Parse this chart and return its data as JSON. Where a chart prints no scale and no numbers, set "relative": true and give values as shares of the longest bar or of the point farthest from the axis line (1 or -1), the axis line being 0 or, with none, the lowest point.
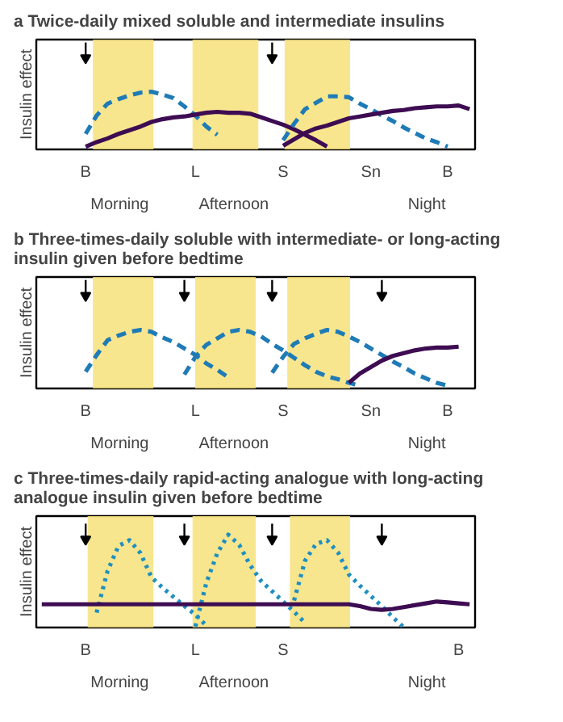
{
  "chart_data": [
    {
      "type": "line",
      "relative": true,
      "title": "a   Twice-daily mixed soluble and intermediate insulins",
      "ylabel": "Insulin effect",
      "grid": false,
      "categories": [
        null,
        null,
        null,
        null,
        "B",
        null,
        null,
        null,
        null,
        null,
        null,
        null,
        null,
        null,
        "L",
        null,
        null,
        null,
        null,
        null,
        null,
        null,
        "S",
        null,
        null,
        null,
        null,
        null,
        null,
        null,
        "Sn",
        null,
        null,
        null,
        null,
        null,
        null,
        "B",
        null,
        null
      ],
      "annotations": [
        "Morning",
        "Afternoon",
        "Night"
      ],
      "series": [
        {
          "type": "scatter",
          "marker": "triangle",
          "color": "#000000",
          "values": [
            null,
            null,
            null,
            null,
            1,
            null,
            null,
            null,
            null,
            null,
            null,
            null,
            null,
            null,
            null,
            null,
            null,
            null,
            null,
            null,
            null,
            1,
            null,
            null,
            null,
            null,
            null,
            null,
            null,
            null,
            null,
            null,
            null,
            null,
            null,
            null,
            null,
            null,
            null,
            null
          ]
        },
        {
          "color": "#1f7bb6",
          "line_style": "dashed",
          "values": [
            null,
            null,
            null,
            null,
            0.17,
            0.37,
            0.5,
            0.55,
            0.59,
            0.62,
            0.63,
            0.6,
            0.56,
            0.47,
            0.37,
            0.25,
            0.16,
            null,
            null,
            null,
            null,
            null,
            null,
            null,
            null,
            null,
            null,
            null,
            null,
            null,
            null,
            null,
            null,
            null,
            null,
            null,
            null,
            null,
            null,
            null
          ]
        },
        {
          "color": "#3d0c52",
          "line_style": "solid",
          "values": [
            null,
            null,
            null,
            null,
            0.03,
            0.08,
            0.12,
            0.17,
            0.21,
            0.25,
            0.3,
            0.33,
            0.35,
            0.36,
            0.38,
            0.4,
            0.41,
            0.4,
            0.4,
            0.39,
            0.35,
            0.31,
            0.27,
            0.22,
            0.16,
            0.1,
            0.03,
            null,
            null,
            null,
            null,
            null,
            null,
            null,
            null,
            null,
            null,
            null,
            null,
            null
          ]
        },
        {
          "color": "#1f7bb6",
          "line_style": "dashed",
          "values": [
            null,
            null,
            null,
            null,
            null,
            null,
            null,
            null,
            null,
            null,
            null,
            null,
            null,
            null,
            null,
            null,
            null,
            null,
            null,
            null,
            null,
            null,
            0.1,
            0.28,
            0.44,
            0.51,
            0.58,
            0.58,
            0.57,
            0.5,
            0.44,
            0.37,
            0.31,
            0.24,
            0.18,
            0.12,
            0.08,
            0.03,
            null,
            null
          ]
        },
        {
          "color": "#3d0c52",
          "line_style": "solid",
          "values": [
            null,
            null,
            null,
            null,
            null,
            null,
            null,
            null,
            null,
            null,
            null,
            null,
            null,
            null,
            null,
            null,
            null,
            null,
            null,
            null,
            null,
            null,
            0.04,
            0.11,
            0.18,
            0.23,
            0.26,
            0.3,
            0.34,
            0.36,
            0.38,
            0.4,
            0.42,
            0.43,
            0.45,
            0.46,
            0.47,
            0.47,
            0.48,
            0.44
          ]
        }
      ]
    },
    {
      "type": "line",
      "relative": true,
      "title": "b   Three-times-daily soluble with intermediate- or long-acting\n     insulin given before bedtime",
      "ylabel": "Insulin effect",
      "grid": false,
      "categories": [
        null,
        null,
        null,
        null,
        "B",
        null,
        null,
        null,
        null,
        null,
        null,
        null,
        null,
        null,
        "L",
        null,
        null,
        null,
        null,
        null,
        null,
        null,
        "S",
        null,
        null,
        null,
        null,
        null,
        null,
        null,
        "Sn",
        null,
        null,
        null,
        null,
        null,
        null,
        "B",
        null,
        null
      ],
      "annotations": [
        "Morning",
        "Afternoon",
        "Night"
      ],
      "series": [
        {
          "type": "scatter",
          "marker": "triangle",
          "color": "#000000",
          "values": [
            null,
            null,
            null,
            null,
            1,
            null,
            null,
            null,
            null,
            null,
            null,
            null,
            null,
            1,
            null,
            null,
            null,
            null,
            null,
            null,
            null,
            1,
            null,
            null,
            null,
            null,
            null,
            null,
            null,
            null,
            null,
            1,
            null,
            null,
            null,
            null,
            null,
            null,
            null,
            null
          ]
        },
        {
          "color": "#1f7bb6",
          "line_style": "dashed",
          "values": [
            null,
            null,
            null,
            null,
            0.18,
            0.36,
            0.52,
            0.57,
            0.61,
            0.63,
            0.61,
            0.55,
            0.5,
            0.43,
            0.36,
            0.27,
            0.2,
            0.12,
            null,
            null,
            null,
            null,
            null,
            null,
            null,
            null,
            null,
            null,
            null,
            null,
            null,
            null,
            null,
            null,
            null,
            null,
            null,
            null,
            null,
            null
          ]
        },
        {
          "color": "#1f7bb6",
          "line_style": "dashed",
          "values": [
            null,
            null,
            null,
            null,
            null,
            null,
            null,
            null,
            null,
            null,
            null,
            null,
            null,
            0.15,
            0.34,
            0.47,
            0.54,
            0.61,
            0.63,
            0.61,
            0.56,
            0.48,
            0.41,
            0.33,
            0.25,
            0.18,
            0.13,
            0.1,
            0.06,
            0.03,
            null,
            null,
            null,
            null,
            null,
            null,
            null,
            null,
            null,
            null
          ]
        },
        {
          "color": "#1f7bb6",
          "line_style": "dashed",
          "values": [
            null,
            null,
            null,
            null,
            null,
            null,
            null,
            null,
            null,
            null,
            null,
            null,
            null,
            null,
            null,
            null,
            null,
            null,
            null,
            null,
            null,
            0.17,
            0.34,
            0.48,
            0.54,
            0.59,
            0.63,
            0.61,
            0.56,
            0.5,
            0.43,
            0.36,
            0.29,
            0.23,
            0.16,
            0.11,
            0.06,
            0.03,
            null,
            null
          ]
        },
        {
          "color": "#3d0c52",
          "line_style": "solid",
          "values": [
            null,
            null,
            null,
            null,
            null,
            null,
            null,
            null,
            null,
            null,
            null,
            null,
            null,
            null,
            null,
            null,
            null,
            null,
            null,
            null,
            null,
            null,
            null,
            null,
            null,
            null,
            null,
            null,
            0.06,
            0.16,
            0.23,
            0.3,
            0.35,
            0.38,
            0.41,
            0.43,
            0.44,
            0.44,
            0.45,
            null
          ]
        }
      ]
    },
    {
      "type": "line",
      "relative": true,
      "title": "c   Three-times-daily rapid-acting analogue with long-acting\n     analogue insulin given before bedtime",
      "ylabel": "Insulin effect",
      "grid": false,
      "categories": [
        null,
        null,
        null,
        null,
        "B",
        null,
        null,
        null,
        null,
        null,
        null,
        null,
        null,
        null,
        "L",
        null,
        null,
        null,
        null,
        null,
        null,
        null,
        "S",
        null,
        null,
        null,
        null,
        null,
        null,
        null,
        null,
        null,
        null,
        null,
        null,
        null,
        null,
        null,
        "B",
        null
      ],
      "annotations": [
        "Morning",
        "Afternoon",
        "Night"
      ],
      "series": [
        {
          "type": "scatter",
          "marker": "triangle",
          "color": "#000000",
          "values": [
            null,
            null,
            null,
            null,
            0.95,
            null,
            null,
            null,
            null,
            null,
            null,
            null,
            null,
            0.95,
            null,
            null,
            null,
            null,
            null,
            null,
            null,
            0.95,
            null,
            null,
            null,
            null,
            null,
            null,
            null,
            null,
            null,
            0.95,
            null,
            null,
            null,
            null,
            null,
            null,
            null,
            null
          ]
        },
        {
          "color": "#1f8fc0",
          "line_style": "dotted",
          "values": [
            null,
            null,
            null,
            null,
            null,
            0.16,
            0.61,
            0.88,
            0.94,
            0.8,
            0.54,
            0.43,
            0.33,
            0.23,
            0.14,
            0.02,
            null,
            null,
            null,
            null,
            null,
            null,
            null,
            null,
            null,
            null,
            null,
            null,
            null,
            null,
            null,
            null,
            null,
            null,
            null,
            null,
            null,
            null,
            null,
            null
          ]
        },
        {
          "color": "#1f8fc0",
          "line_style": "dotted",
          "values": [
            null,
            null,
            null,
            null,
            null,
            null,
            null,
            null,
            null,
            null,
            null,
            null,
            null,
            null,
            0.01,
            0.48,
            0.8,
            1.0,
            0.89,
            0.67,
            0.5,
            0.39,
            0.28,
            0.17,
            0.05,
            null,
            null,
            null,
            null,
            null,
            null,
            null,
            null,
            null,
            null,
            null,
            null,
            null,
            null,
            null
          ]
        },
        {
          "color": "#1f8fc0",
          "line_style": "dotted",
          "values": [
            null,
            null,
            null,
            null,
            null,
            null,
            null,
            null,
            null,
            null,
            null,
            null,
            null,
            null,
            null,
            null,
            null,
            null,
            null,
            null,
            null,
            null,
            null,
            0.29,
            0.72,
            0.9,
            0.94,
            0.81,
            0.57,
            0.45,
            0.34,
            0.23,
            0.11,
            0,
            null,
            null,
            null,
            null,
            null,
            null
          ]
        },
        {
          "color": "#3d0c52",
          "line_style": "solid",
          "values": [
            0.25,
            0.25,
            0.25,
            0.25,
            0.25,
            0.25,
            0.25,
            0.25,
            0.25,
            0.25,
            0.25,
            0.25,
            0.25,
            0.25,
            0.25,
            0.25,
            0.25,
            0.25,
            0.25,
            0.25,
            0.25,
            0.25,
            0.25,
            0.25,
            0.25,
            0.25,
            0.25,
            0.25,
            0.25,
            0.23,
            0.2,
            0.19,
            0.2,
            0.22,
            0.24,
            0.26,
            0.28,
            0.27,
            0.26,
            0.25
          ]
        }
      ]
    }
  ]
}
